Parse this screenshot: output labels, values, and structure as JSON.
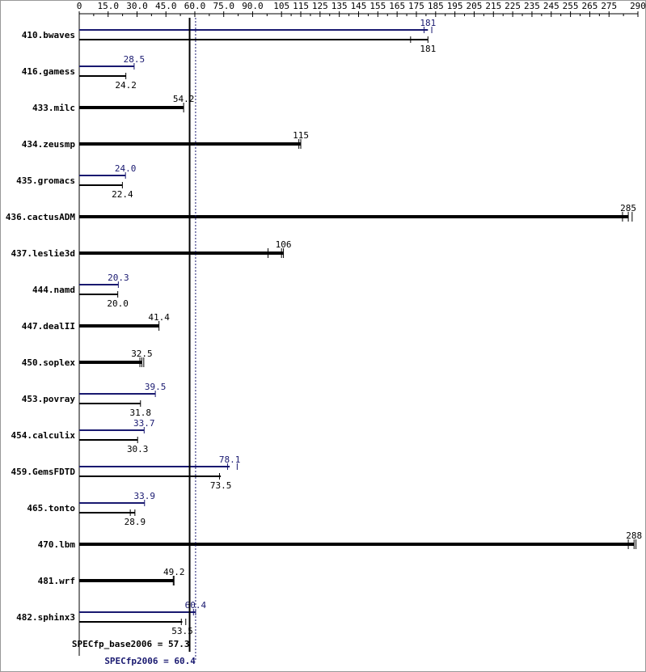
{
  "chart_data": {
    "type": "bar",
    "orientation": "horizontal",
    "xlim": [
      0,
      290
    ],
    "xticks": [
      0,
      15,
      30,
      45,
      60,
      75,
      90,
      105,
      115,
      125,
      135,
      145,
      155,
      165,
      175,
      185,
      195,
      205,
      215,
      225,
      235,
      245,
      255,
      265,
      275,
      290
    ],
    "xtick_labels": [
      "0",
      "15.0",
      "30.0",
      "45.0",
      "60.0",
      "75.0",
      "90.0",
      "105",
      "115",
      "125",
      "135",
      "145",
      "155",
      "165",
      "175",
      "185",
      "195",
      "205",
      "215",
      "225",
      "235",
      "245",
      "255",
      "265",
      "275",
      "290"
    ],
    "colors": {
      "peak": "#191970",
      "base": "#000000"
    },
    "benchmarks": [
      {
        "name": "410.bwaves",
        "peak": 181,
        "peak_label": "181",
        "peak_runs": [
          179,
          183
        ],
        "base": 181,
        "base_label": "181",
        "base_runs": [
          172,
          181
        ]
      },
      {
        "name": "416.gamess",
        "peak": 28.5,
        "peak_label": "28.5",
        "peak_runs": [
          28.5
        ],
        "base": 24.2,
        "base_label": "24.2",
        "base_runs": [
          24.2
        ]
      },
      {
        "name": "433.milc",
        "same": true,
        "base": 54.2,
        "base_label": "54.2",
        "base_runs": [
          54.2
        ]
      },
      {
        "name": "434.zeusmp",
        "same": true,
        "base": 115,
        "base_label": "115",
        "base_runs": [
          114,
          115
        ]
      },
      {
        "name": "435.gromacs",
        "peak": 24.0,
        "peak_label": "24.0",
        "peak_runs": [
          24.0
        ],
        "base": 22.4,
        "base_label": "22.4",
        "base_runs": [
          22.4
        ]
      },
      {
        "name": "436.cactusADM",
        "same": true,
        "base": 285,
        "base_label": "285",
        "base_runs": [
          282,
          285,
          287
        ]
      },
      {
        "name": "437.leslie3d",
        "same": true,
        "base": 106,
        "base_label": "106",
        "base_runs": [
          98,
          105,
          106
        ]
      },
      {
        "name": "444.namd",
        "peak": 20.3,
        "peak_label": "20.3",
        "peak_runs": [
          20.3
        ],
        "base": 20.0,
        "base_label": "20.0",
        "base_runs": [
          20.0
        ]
      },
      {
        "name": "447.dealII",
        "same": true,
        "base": 41.4,
        "base_label": "41.4",
        "base_runs": [
          41.4
        ]
      },
      {
        "name": "450.soplex",
        "same": true,
        "base": 32.5,
        "base_label": "32.5",
        "base_runs": [
          31.5,
          32.5,
          33.5
        ]
      },
      {
        "name": "453.povray",
        "peak": 39.5,
        "peak_label": "39.5",
        "peak_runs": [
          39.5
        ],
        "base": 31.8,
        "base_label": "31.8",
        "base_runs": [
          31.8
        ]
      },
      {
        "name": "454.calculix",
        "peak": 33.7,
        "peak_label": "33.7",
        "peak_runs": [
          33.7
        ],
        "base": 30.3,
        "base_label": "30.3",
        "base_runs": [
          30.3
        ]
      },
      {
        "name": "459.GemsFDTD",
        "peak": 78.1,
        "peak_label": "78.1",
        "peak_runs": [
          77.0,
          82.0
        ],
        "base": 73.5,
        "base_label": "73.5",
        "base_runs": [
          72.8
        ]
      },
      {
        "name": "465.tonto",
        "peak": 33.9,
        "peak_label": "33.9",
        "peak_runs": [
          33.9
        ],
        "base": 28.9,
        "base_label": "28.9",
        "base_runs": [
          26.5,
          28.9
        ]
      },
      {
        "name": "470.lbm",
        "same": true,
        "base": 288,
        "base_label": "288",
        "base_runs": [
          285,
          288,
          289
        ]
      },
      {
        "name": "481.wrf",
        "same": true,
        "base": 49.2,
        "base_label": "49.2",
        "base_runs": [
          48.8,
          49.2
        ]
      },
      {
        "name": "482.sphinx3",
        "peak": 60.4,
        "peak_label": "60.4",
        "peak_runs": [
          59.3,
          60.4
        ],
        "base": 53.5,
        "base_label": "53.5",
        "base_runs": [
          53.0,
          55.3
        ]
      }
    ],
    "summary": {
      "base_value": 57.3,
      "base_label": "SPECfp_base2006 = 57.3",
      "peak_value": 60.4,
      "peak_label": "SPECfp2006 = 60.4"
    }
  }
}
